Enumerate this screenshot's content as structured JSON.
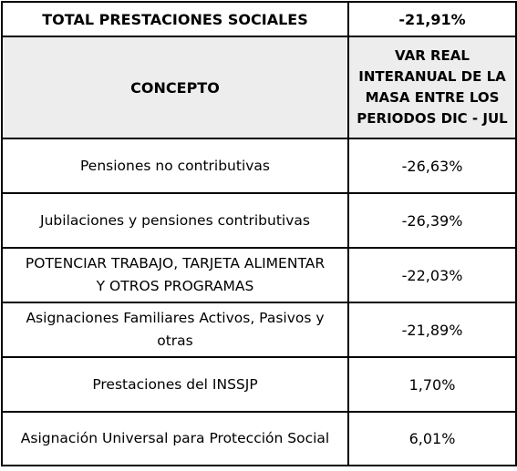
{
  "total": {
    "label": "TOTAL PRESTACIONES SOCIALES",
    "value": "-21,91%"
  },
  "header": {
    "concept": "CONCEPTO",
    "variation_lines": [
      "VAR REAL",
      "INTERANUAL DE LA",
      "MASA ENTRE LOS",
      "PERIODOS DIC - JUL"
    ]
  },
  "rows": [
    {
      "concept_lines": [
        "Pensiones no contributivas"
      ],
      "value": "-26,63%"
    },
    {
      "concept_lines": [
        "Jubilaciones y pensiones contributivas"
      ],
      "value": "-26,39%"
    },
    {
      "concept_lines": [
        "POTENCIAR TRABAJO, TARJETA ALIMENTAR",
        "Y OTROS PROGRAMAS"
      ],
      "value": "-22,03%"
    },
    {
      "concept_lines": [
        "Asignaciones Familiares Activos, Pasivos y",
        "otras"
      ],
      "value": "-21,89%"
    },
    {
      "concept_lines": [
        "Prestaciones del INSSJP"
      ],
      "value": "1,70%"
    },
    {
      "concept_lines": [
        "Asignación Universal para Protección Social"
      ],
      "value": "6,01%"
    }
  ],
  "colors": {
    "header_background": "#ededed",
    "border": "#000000",
    "text": "#000000"
  }
}
